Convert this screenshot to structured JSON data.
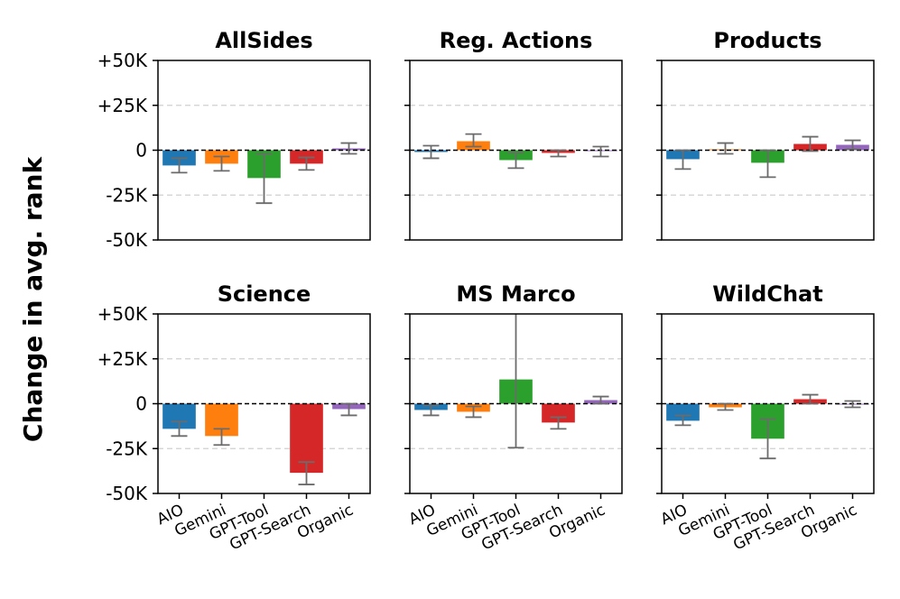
{
  "figure": {
    "ylabel": "Change in avg. rank"
  },
  "chart_data": {
    "type": "bar",
    "categories": [
      "AIO",
      "Gemini",
      "GPT-Tool",
      "GPT-Search",
      "Organic"
    ],
    "category_colors": [
      "#1f77b4",
      "#ff7f0e",
      "#2ca02c",
      "#d62728",
      "#9467bd"
    ],
    "error_bar_color": "#6b6b6b",
    "ylim": [
      -50000,
      50000
    ],
    "yticks": [
      -50000,
      -25000,
      0,
      25000,
      50000
    ],
    "ytick_labels": [
      "-50K",
      "-25K",
      "0",
      "+25K",
      "+50K"
    ],
    "zero_line": "dashed black",
    "grid": "horizontal dashed",
    "panels": [
      {
        "title": "AllSides",
        "values": [
          -8500,
          -7500,
          -15500,
          -7500,
          1000
        ],
        "err_low": [
          -12500,
          -11500,
          -29500,
          -11000,
          -2000
        ],
        "err_high": [
          -4500,
          -3500,
          -2000,
          -4000,
          4000
        ]
      },
      {
        "title": "Reg. Actions",
        "values": [
          -1000,
          5000,
          -5500,
          -1500,
          -500
        ],
        "err_low": [
          -4500,
          2000,
          -10000,
          -3500,
          -3500
        ],
        "err_high": [
          2500,
          9000,
          -1500,
          0,
          2000
        ]
      },
      {
        "title": "Products",
        "values": [
          -5000,
          500,
          -7000,
          3500,
          3000
        ],
        "err_low": [
          -10500,
          -2000,
          -15000,
          -500,
          500
        ],
        "err_high": [
          0,
          4000,
          0,
          7500,
          5500
        ]
      },
      {
        "title": "Science",
        "values": [
          -14000,
          -18000,
          null,
          -38500,
          -3000
        ],
        "err_low": [
          -18000,
          -23000,
          null,
          -45000,
          -6500
        ],
        "err_high": [
          -10000,
          -14000,
          null,
          -32500,
          0
        ]
      },
      {
        "title": "MS Marco",
        "values": [
          -3500,
          -4500,
          13500,
          -10500,
          2000
        ],
        "err_low": [
          -6500,
          -7500,
          -24500,
          -14000,
          0
        ],
        "err_high": [
          -1000,
          -1500,
          50000,
          -7500,
          4000
        ]
      },
      {
        "title": "WildChat",
        "values": [
          -9500,
          -2000,
          -19500,
          2500,
          -500
        ],
        "err_low": [
          -12000,
          -3500,
          -30500,
          0,
          -2000
        ],
        "err_high": [
          -6500,
          0,
          -8500,
          5000,
          1500
        ]
      }
    ]
  }
}
